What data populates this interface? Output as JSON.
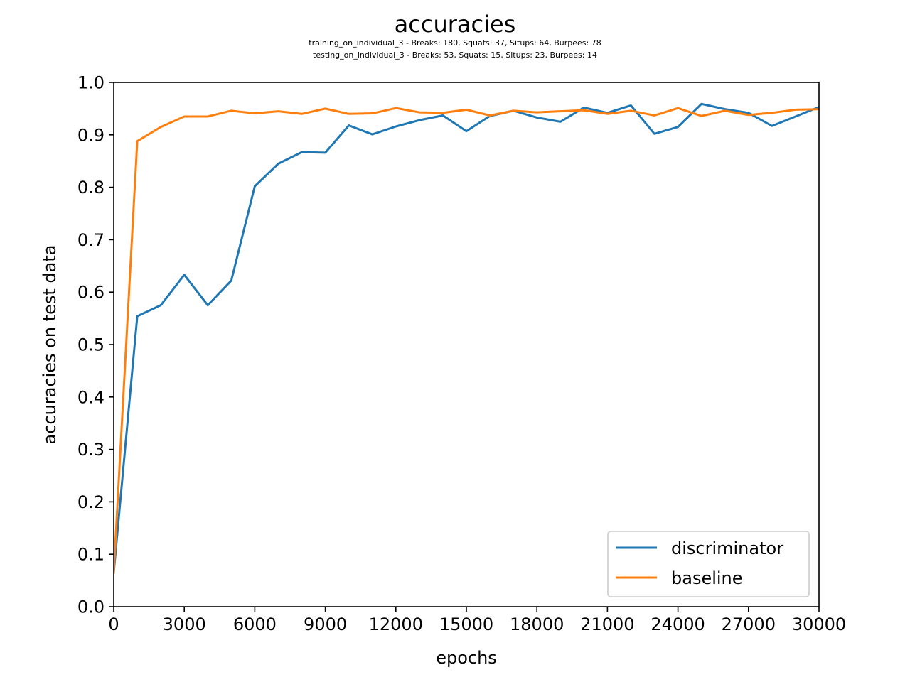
{
  "chart_data": {
    "type": "line",
    "title": "accuracies",
    "subtitle_lines": [
      "training_on_individual_3 - Breaks: 180, Squats: 37, Situps: 64, Burpees: 78",
      "testing_on_individual_3 - Breaks: 53, Squats: 15, Situps: 23, Burpees: 14"
    ],
    "xlabel": "epochs",
    "ylabel": "accuracies on test data",
    "xlim": [
      0,
      30000
    ],
    "ylim": [
      0,
      1.0
    ],
    "xticks": [
      0,
      3000,
      6000,
      9000,
      12000,
      15000,
      18000,
      21000,
      24000,
      27000,
      30000
    ],
    "yticks": [
      0.0,
      0.1,
      0.2,
      0.3,
      0.4,
      0.5,
      0.6,
      0.7,
      0.8,
      0.9,
      1.0
    ],
    "grid": false,
    "legend_position": "lower-right",
    "x": [
      0,
      1000,
      2000,
      3000,
      4000,
      5000,
      6000,
      7000,
      8000,
      9000,
      10000,
      11000,
      12000,
      13000,
      14000,
      15000,
      16000,
      17000,
      18000,
      19000,
      20000,
      21000,
      22000,
      23000,
      24000,
      25000,
      26000,
      27000,
      28000,
      29000,
      30000
    ],
    "series": [
      {
        "name": "discriminator",
        "color": "#1f77b4",
        "values": [
          0.065,
          0.554,
          0.575,
          0.633,
          0.575,
          0.622,
          0.802,
          0.845,
          0.867,
          0.866,
          0.918,
          0.901,
          0.916,
          0.928,
          0.937,
          0.907,
          0.936,
          0.946,
          0.933,
          0.925,
          0.952,
          0.942,
          0.956,
          0.902,
          0.915,
          0.959,
          0.949,
          0.942,
          0.917,
          0.935,
          0.953
        ]
      },
      {
        "name": "baseline",
        "color": "#ff7f0e",
        "values": [
          0.065,
          0.888,
          0.915,
          0.935,
          0.935,
          0.946,
          0.941,
          0.945,
          0.94,
          0.95,
          0.94,
          0.941,
          0.951,
          0.943,
          0.942,
          0.948,
          0.937,
          0.946,
          0.943,
          0.945,
          0.947,
          0.94,
          0.946,
          0.937,
          0.951,
          0.936,
          0.946,
          0.938,
          0.942,
          0.948,
          0.949
        ]
      }
    ]
  }
}
